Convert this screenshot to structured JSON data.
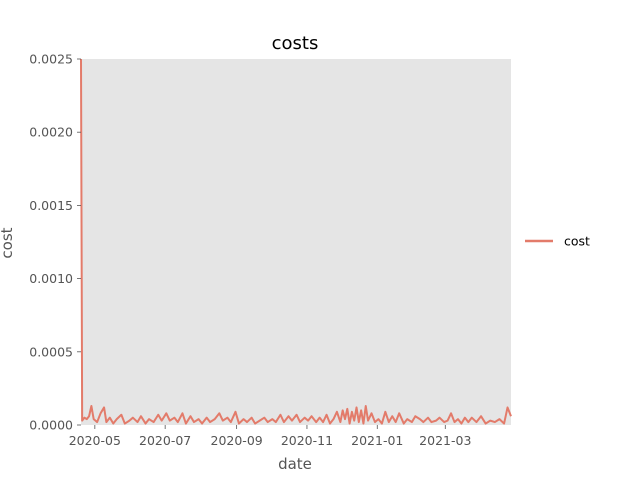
{
  "chart_data": {
    "type": "line",
    "title": "costs",
    "xlabel": "date",
    "ylabel": "cost",
    "xlim": [
      "2020-04-19",
      "2021-04-27"
    ],
    "ylim": [
      0,
      0.0025
    ],
    "x_ticks": [
      "2020-05",
      "2020-07",
      "2020-09",
      "2020-11",
      "2021-01",
      "2021-03"
    ],
    "y_ticks": [
      "0.0000",
      "0.0005",
      "0.0010",
      "0.0015",
      "0.0020",
      "0.0025"
    ],
    "legend_position": "center-right",
    "grid": false,
    "background": "#e5e5e5",
    "series": [
      {
        "name": "cost",
        "color": "#e37b6a",
        "points": [
          [
            "2020-04-19",
            0.0025
          ],
          [
            "2020-04-20",
            3e-05
          ],
          [
            "2020-04-22",
            5e-05
          ],
          [
            "2020-04-24",
            4e-05
          ],
          [
            "2020-04-26",
            6e-05
          ],
          [
            "2020-04-28",
            0.00013
          ],
          [
            "2020-04-30",
            4e-05
          ],
          [
            "2020-05-03",
            2e-05
          ],
          [
            "2020-05-06",
            8e-05
          ],
          [
            "2020-05-09",
            0.00012
          ],
          [
            "2020-05-11",
            2e-05
          ],
          [
            "2020-05-14",
            5e-05
          ],
          [
            "2020-05-17",
            1e-05
          ],
          [
            "2020-05-20",
            4e-05
          ],
          [
            "2020-05-24",
            7e-05
          ],
          [
            "2020-05-27",
            1e-05
          ],
          [
            "2020-05-31",
            3e-05
          ],
          [
            "2020-06-03",
            5e-05
          ],
          [
            "2020-06-07",
            2e-05
          ],
          [
            "2020-06-10",
            6e-05
          ],
          [
            "2020-06-14",
            1e-05
          ],
          [
            "2020-06-17",
            4e-05
          ],
          [
            "2020-06-21",
            2e-05
          ],
          [
            "2020-06-25",
            7e-05
          ],
          [
            "2020-06-28",
            3e-05
          ],
          [
            "2020-07-02",
            8e-05
          ],
          [
            "2020-07-05",
            3e-05
          ],
          [
            "2020-07-09",
            5e-05
          ],
          [
            "2020-07-12",
            2e-05
          ],
          [
            "2020-07-16",
            8e-05
          ],
          [
            "2020-07-19",
            1e-05
          ],
          [
            "2020-07-23",
            6e-05
          ],
          [
            "2020-07-26",
            2e-05
          ],
          [
            "2020-07-30",
            4e-05
          ],
          [
            "2020-08-02",
            1e-05
          ],
          [
            "2020-08-06",
            5e-05
          ],
          [
            "2020-08-09",
            2e-05
          ],
          [
            "2020-08-13",
            4e-05
          ],
          [
            "2020-08-17",
            8e-05
          ],
          [
            "2020-08-20",
            3e-05
          ],
          [
            "2020-08-24",
            5e-05
          ],
          [
            "2020-08-27",
            2e-05
          ],
          [
            "2020-08-31",
            9e-05
          ],
          [
            "2020-09-03",
            1e-05
          ],
          [
            "2020-09-07",
            4e-05
          ],
          [
            "2020-09-10",
            2e-05
          ],
          [
            "2020-09-14",
            5e-05
          ],
          [
            "2020-09-17",
            1e-05
          ],
          [
            "2020-09-21",
            3e-05
          ],
          [
            "2020-09-25",
            5e-05
          ],
          [
            "2020-09-28",
            2e-05
          ],
          [
            "2020-10-02",
            4e-05
          ],
          [
            "2020-10-05",
            2e-05
          ],
          [
            "2020-10-09",
            7e-05
          ],
          [
            "2020-10-12",
            2e-05
          ],
          [
            "2020-10-16",
            6e-05
          ],
          [
            "2020-10-19",
            3e-05
          ],
          [
            "2020-10-23",
            7e-05
          ],
          [
            "2020-10-26",
            2e-05
          ],
          [
            "2020-10-30",
            5e-05
          ],
          [
            "2020-11-02",
            3e-05
          ],
          [
            "2020-11-05",
            6e-05
          ],
          [
            "2020-11-09",
            2e-05
          ],
          [
            "2020-11-12",
            5e-05
          ],
          [
            "2020-11-15",
            2e-05
          ],
          [
            "2020-11-18",
            7e-05
          ],
          [
            "2020-11-21",
            1e-05
          ],
          [
            "2020-11-24",
            4e-05
          ],
          [
            "2020-11-27",
            9e-05
          ],
          [
            "2020-11-30",
            2e-05
          ],
          [
            "2020-12-02",
            0.0001
          ],
          [
            "2020-12-04",
            4e-05
          ],
          [
            "2020-12-06",
            0.00011
          ],
          [
            "2020-12-08",
            1e-05
          ],
          [
            "2020-12-10",
            9e-05
          ],
          [
            "2020-12-12",
            3e-05
          ],
          [
            "2020-12-14",
            0.00012
          ],
          [
            "2020-12-16",
            2e-05
          ],
          [
            "2020-12-18",
            0.0001
          ],
          [
            "2020-12-20",
            1e-05
          ],
          [
            "2020-12-22",
            0.00013
          ],
          [
            "2020-12-24",
            3e-05
          ],
          [
            "2020-12-27",
            8e-05
          ],
          [
            "2020-12-30",
            2e-05
          ],
          [
            "2021-01-02",
            4e-05
          ],
          [
            "2021-01-05",
            1e-05
          ],
          [
            "2021-01-08",
            9e-05
          ],
          [
            "2021-01-11",
            2e-05
          ],
          [
            "2021-01-14",
            6e-05
          ],
          [
            "2021-01-17",
            2e-05
          ],
          [
            "2021-01-20",
            8e-05
          ],
          [
            "2021-01-24",
            1e-05
          ],
          [
            "2021-01-27",
            4e-05
          ],
          [
            "2021-01-31",
            2e-05
          ],
          [
            "2021-02-03",
            6e-05
          ],
          [
            "2021-02-07",
            4e-05
          ],
          [
            "2021-02-10",
            2e-05
          ],
          [
            "2021-02-14",
            5e-05
          ],
          [
            "2021-02-17",
            2e-05
          ],
          [
            "2021-02-21",
            3e-05
          ],
          [
            "2021-02-24",
            5e-05
          ],
          [
            "2021-02-28",
            2e-05
          ],
          [
            "2021-03-03",
            3e-05
          ],
          [
            "2021-03-06",
            8e-05
          ],
          [
            "2021-03-09",
            2e-05
          ],
          [
            "2021-03-12",
            4e-05
          ],
          [
            "2021-03-15",
            1e-05
          ],
          [
            "2021-03-18",
            5e-05
          ],
          [
            "2021-03-21",
            2e-05
          ],
          [
            "2021-03-24",
            5e-05
          ],
          [
            "2021-03-28",
            2e-05
          ],
          [
            "2021-04-01",
            6e-05
          ],
          [
            "2021-04-05",
            1e-05
          ],
          [
            "2021-04-09",
            3e-05
          ],
          [
            "2021-04-13",
            2e-05
          ],
          [
            "2021-04-17",
            4e-05
          ],
          [
            "2021-04-21",
            1e-05
          ],
          [
            "2021-04-24",
            0.00012
          ],
          [
            "2021-04-27",
            6e-05
          ]
        ]
      }
    ]
  }
}
